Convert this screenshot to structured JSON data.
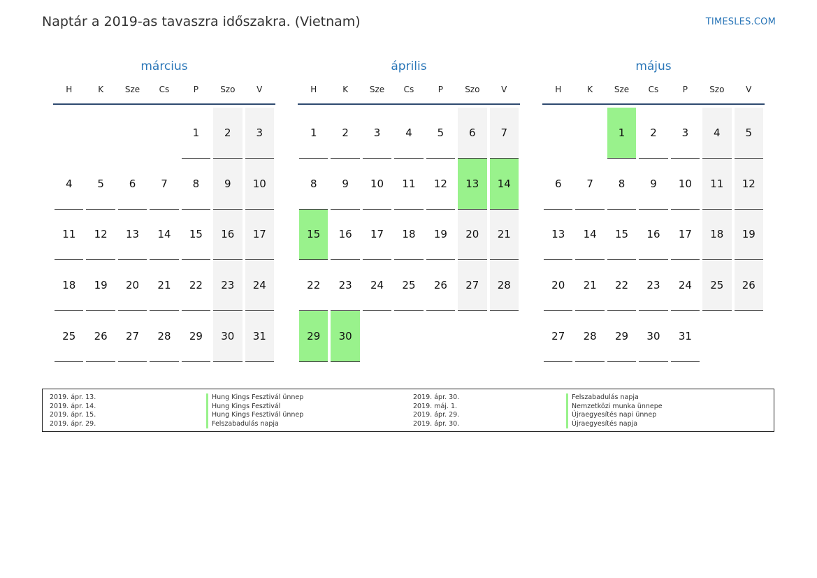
{
  "header": {
    "title": "Naptár a 2019-as tavaszra időszakra. (Vietnam)",
    "site": "TIMESLES.COM"
  },
  "colors": {
    "accent": "#2a76b8",
    "holiday": "#99f28c",
    "weekend": "#f3f3f3"
  },
  "weekdays": [
    "H",
    "K",
    "Sze",
    "Cs",
    "P",
    "Szo",
    "V"
  ],
  "months": [
    {
      "name": "március",
      "weeks": [
        [
          "",
          "",
          "",
          "",
          "1",
          "2",
          "3"
        ],
        [
          "4",
          "5",
          "6",
          "7",
          "8",
          "9",
          "10"
        ],
        [
          "11",
          "12",
          "13",
          "14",
          "15",
          "16",
          "17"
        ],
        [
          "18",
          "19",
          "20",
          "21",
          "22",
          "23",
          "24"
        ],
        [
          "25",
          "26",
          "27",
          "28",
          "29",
          "30",
          "31"
        ]
      ],
      "holidays": []
    },
    {
      "name": "április",
      "weeks": [
        [
          "1",
          "2",
          "3",
          "4",
          "5",
          "6",
          "7"
        ],
        [
          "8",
          "9",
          "10",
          "11",
          "12",
          "13",
          "14"
        ],
        [
          "15",
          "16",
          "17",
          "18",
          "19",
          "20",
          "21"
        ],
        [
          "22",
          "23",
          "24",
          "25",
          "26",
          "27",
          "28"
        ],
        [
          "29",
          "30",
          "",
          "",
          "",
          "",
          ""
        ]
      ],
      "holidays": [
        "13",
        "14",
        "15",
        "29",
        "30"
      ]
    },
    {
      "name": "május",
      "weeks": [
        [
          "",
          "",
          "1",
          "2",
          "3",
          "4",
          "5"
        ],
        [
          "6",
          "7",
          "8",
          "9",
          "10",
          "11",
          "12"
        ],
        [
          "13",
          "14",
          "15",
          "16",
          "17",
          "18",
          "19"
        ],
        [
          "20",
          "21",
          "22",
          "23",
          "24",
          "25",
          "26"
        ],
        [
          "27",
          "28",
          "29",
          "30",
          "31",
          "",
          ""
        ]
      ],
      "holidays": [
        "1"
      ]
    }
  ],
  "legend": {
    "left_dates": [
      "2019. ápr. 13.",
      "2019. ápr. 14.",
      "2019. ápr. 15.",
      "2019. ápr. 29."
    ],
    "left_names": [
      "Hung Kings Fesztivál ünnep",
      "Hung Kings Fesztivál",
      "Hung Kings Fesztivál ünnep",
      "Felszabadulás napja"
    ],
    "right_dates": [
      "2019. ápr. 30.",
      "2019. máj. 1.",
      "2019. ápr. 29.",
      "2019. ápr. 30."
    ],
    "right_names": [
      "Felszabadulás napja",
      "Nemzetközi munka ünnepe",
      "Újraegyesítés napi ünnep",
      "Újraegyesítés napja"
    ]
  }
}
